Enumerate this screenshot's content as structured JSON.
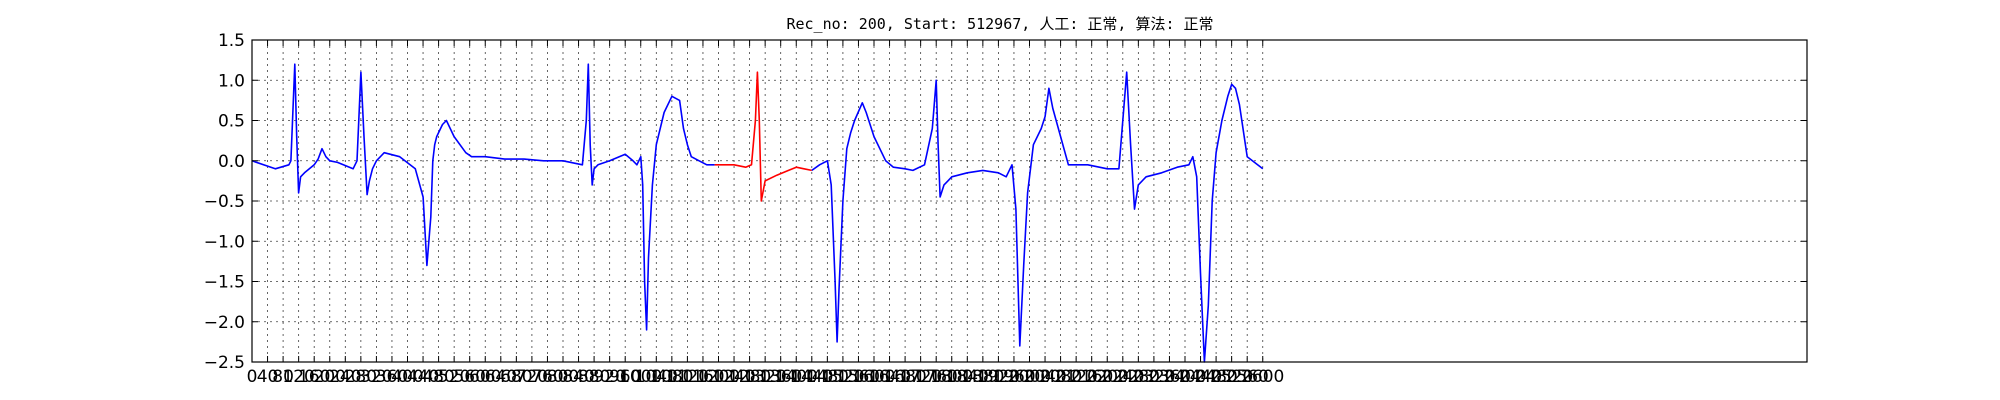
{
  "chart_data": {
    "type": "line",
    "title": "Rec_no: 200, Start: 512967, 人工: 正常, 算法: 正常",
    "xlabel": "",
    "ylabel": "",
    "xlim": [
      0,
      4000
    ],
    "ylim": [
      -2.5,
      1.5
    ],
    "grid": true,
    "x_ticks": [
      0,
      40,
      80,
      120,
      160,
      200,
      240,
      280,
      320,
      360,
      400,
      440,
      480,
      520,
      560,
      600,
      640,
      680,
      720,
      760,
      800,
      840,
      880,
      920,
      960,
      1000,
      1040,
      1080,
      1120,
      1160,
      1200,
      1240,
      1280,
      1320,
      1360,
      1400,
      1440,
      1480,
      1520,
      1560,
      1600,
      1640,
      1680,
      1720,
      1760,
      1800,
      1840,
      1880,
      1920,
      1960,
      2000,
      2040,
      2080,
      2120,
      2160,
      2200,
      2240,
      2280,
      2320,
      2360,
      2400,
      2440,
      2480,
      2520,
      2560,
      2600
    ],
    "y_ticks": [
      -2.5,
      -2.0,
      -1.5,
      -1.0,
      -0.5,
      0.0,
      0.5,
      1.0,
      1.5
    ],
    "y_tick_labels": [
      "−2.5",
      "−2.0",
      "−1.5",
      "−1.0",
      "−0.5",
      "0.0",
      "0.5",
      "1.0",
      "1.5"
    ],
    "series": [
      {
        "color": "#0000ff",
        "x": [
          0,
          60,
          95,
          100,
          110,
          115,
          120,
          125,
          135,
          160,
          170,
          180,
          190,
          200,
          220,
          260,
          270,
          280,
          288,
          296,
          302,
          310,
          320,
          340,
          380,
          420,
          440,
          450,
          460,
          465,
          470,
          475,
          480,
          490,
          500,
          520,
          550,
          565,
          580,
          600,
          650,
          700,
          750,
          800,
          850,
          860,
          865,
          870,
          875,
          880,
          890,
          920,
          960,
          980,
          990,
          1000,
          1005,
          1010,
          1015,
          1020,
          1030,
          1040,
          1050,
          1060,
          1080,
          1100,
          1110,
          1120,
          1130,
          1150,
          1170,
          1190
        ],
        "y": [
          0.0,
          -0.1,
          -0.05,
          0.0,
          1.2,
          0.3,
          -0.4,
          -0.2,
          -0.15,
          -0.05,
          0.02,
          0.15,
          0.05,
          0.0,
          -0.02,
          -0.1,
          0.0,
          1.1,
          0.3,
          -0.42,
          -0.25,
          -0.1,
          0.0,
          0.1,
          0.05,
          -0.1,
          -0.45,
          -1.3,
          -0.7,
          0.0,
          0.2,
          0.3,
          0.35,
          0.45,
          0.5,
          0.3,
          0.1,
          0.05,
          0.05,
          0.05,
          0.02,
          0.02,
          0.0,
          0.0,
          -0.05,
          0.5,
          1.2,
          0.2,
          -0.3,
          -0.1,
          -0.05,
          0.0,
          0.08,
          0.0,
          -0.05,
          0.05,
          -0.3,
          -1.5,
          -2.1,
          -1.2,
          -0.3,
          0.2,
          0.4,
          0.6,
          0.8,
          0.75,
          0.4,
          0.2,
          0.05,
          0.0,
          -0.05,
          -0.05
        ]
      },
      {
        "color": "#ff0000",
        "x": [
          1190,
          1210,
          1240,
          1270,
          1285,
          1295,
          1300,
          1305,
          1310,
          1320,
          1350,
          1380,
          1400,
          1420,
          1440
        ],
        "y": [
          -0.05,
          -0.05,
          -0.05,
          -0.08,
          -0.05,
          0.5,
          1.1,
          0.5,
          -0.5,
          -0.25,
          -0.18,
          -0.12,
          -0.08,
          -0.1,
          -0.12
        ]
      },
      {
        "color": "#0000ff",
        "x": [
          1440,
          1460,
          1480,
          1490,
          1500,
          1505,
          1510,
          1520,
          1530,
          1540,
          1550,
          1570,
          1580,
          1600,
          1630,
          1650,
          1680,
          1700,
          1730,
          1750,
          1760,
          1765,
          1770,
          1780,
          1790,
          1800,
          1840,
          1880,
          1920,
          1940,
          1955,
          1965,
          1975,
          1985,
          1995,
          2010,
          2030,
          2040,
          2050,
          2060,
          2080,
          2100,
          2150,
          2200,
          2230,
          2250,
          2260,
          2270,
          2280,
          2300,
          2340,
          2380,
          2410,
          2420,
          2430,
          2440,
          2450,
          2460,
          2470,
          2480,
          2495,
          2510,
          2520,
          2530,
          2540,
          2560,
          2600
        ],
        "y": [
          -0.12,
          -0.05,
          0.0,
          -0.3,
          -1.5,
          -2.25,
          -1.6,
          -0.5,
          0.15,
          0.35,
          0.5,
          0.72,
          0.6,
          0.3,
          0.0,
          -0.08,
          -0.1,
          -0.12,
          -0.05,
          0.4,
          1.0,
          0.2,
          -0.45,
          -0.3,
          -0.25,
          -0.2,
          -0.15,
          -0.12,
          -0.15,
          -0.2,
          -0.05,
          -0.6,
          -2.3,
          -1.3,
          -0.4,
          0.2,
          0.4,
          0.55,
          0.9,
          0.65,
          0.3,
          -0.05,
          -0.05,
          -0.1,
          -0.1,
          1.1,
          0.2,
          -0.6,
          -0.3,
          -0.2,
          -0.15,
          -0.08,
          -0.05,
          0.05,
          -0.2,
          -1.4,
          -2.5,
          -1.8,
          -0.5,
          0.1,
          0.5,
          0.8,
          0.95,
          0.9,
          0.7,
          0.05,
          -0.1
        ]
      }
    ]
  }
}
